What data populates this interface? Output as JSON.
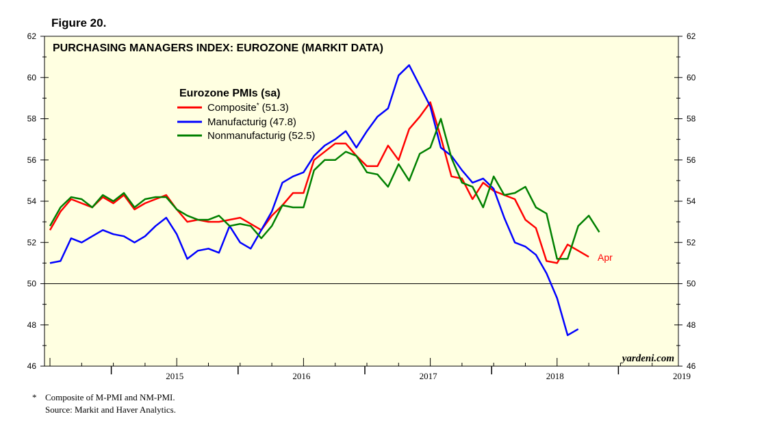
{
  "figure_label": "Figure 20.",
  "footnotes": {
    "star": "*",
    "composite_note": "Composite of M-PMI and NM-PMI.",
    "source": "Source: Markit and Haver Analytics."
  },
  "chart_data": {
    "type": "line",
    "title": "PURCHASING MANAGERS INDEX: EUROZONE (MARKIT DATA)",
    "legend_title": "Eurozone PMIs (sa)",
    "legend_position": "top-left",
    "watermark": "yardeni.com",
    "end_annotation": "Apr",
    "ylim": [
      46,
      62
    ],
    "yticks": [
      46,
      48,
      50,
      52,
      54,
      56,
      58,
      60,
      62
    ],
    "reference_line": 50,
    "start": "2014-07",
    "xlim_months": [
      0,
      60
    ],
    "year_labels": [
      "2015",
      "2016",
      "2017",
      "2018",
      "2019"
    ],
    "colors": {
      "composite": "#ff0000",
      "manufacturing": "#0000ff",
      "nonmanufacturing": "#008000",
      "background": "#ffffe1"
    },
    "series": [
      {
        "key": "composite",
        "name": "Composite",
        "name_suffix": "*",
        "legend_value": "(51.3)",
        "color": "#ff0000",
        "values": [
          52.6,
          53.5,
          54.1,
          53.9,
          53.7,
          54.2,
          53.9,
          54.3,
          53.6,
          53.9,
          54.1,
          54.3,
          53.6,
          53.0,
          53.1,
          53.0,
          53.0,
          53.1,
          53.2,
          52.9,
          52.6,
          53.3,
          53.8,
          54.4,
          54.4,
          56.0,
          56.4,
          56.8,
          56.8,
          56.2,
          55.7,
          55.7,
          56.7,
          56.0,
          57.5,
          58.1,
          58.8,
          57.1,
          55.2,
          55.1,
          54.1,
          54.9,
          54.5,
          54.3,
          54.1,
          53.1,
          52.7,
          51.1,
          51.0,
          51.9,
          51.6,
          51.3
        ],
        "start_index": 0
      },
      {
        "key": "manufacturing",
        "name": "Manufacturig",
        "name_suffix": "",
        "legend_value": "(47.8)",
        "color": "#0000ff",
        "values": [
          51.0,
          51.1,
          52.2,
          52.0,
          52.3,
          52.6,
          52.4,
          52.3,
          52.0,
          52.3,
          52.8,
          53.2,
          52.4,
          51.2,
          51.6,
          51.7,
          51.5,
          52.8,
          52.0,
          51.7,
          52.6,
          53.5,
          54.9,
          55.2,
          55.4,
          56.2,
          56.7,
          57.0,
          57.4,
          56.6,
          57.4,
          58.1,
          58.5,
          60.1,
          60.6,
          59.6,
          58.6,
          56.6,
          56.2,
          55.5,
          54.9,
          55.1,
          54.6,
          53.2,
          52.0,
          51.8,
          51.4,
          50.5,
          49.3,
          47.5,
          47.8
        ],
        "start_index": 0
      },
      {
        "key": "nonmanufacturing",
        "name": "Nonmanufacturig",
        "name_suffix": "",
        "legend_value": "(52.5)",
        "color": "#008000",
        "values": [
          52.8,
          53.7,
          54.2,
          54.1,
          53.7,
          54.3,
          54.0,
          54.4,
          53.7,
          54.1,
          54.2,
          54.2,
          53.6,
          53.3,
          53.1,
          53.1,
          53.3,
          52.8,
          52.9,
          52.8,
          52.2,
          52.8,
          53.8,
          53.7,
          53.7,
          55.5,
          56.0,
          56.0,
          56.4,
          56.2,
          55.4,
          55.3,
          54.7,
          55.8,
          55.0,
          56.3,
          56.6,
          58.0,
          56.1,
          54.9,
          54.7,
          53.7,
          55.2,
          54.3,
          54.4,
          54.7,
          53.7,
          53.4,
          51.2,
          51.2,
          52.8,
          53.3,
          52.5
        ],
        "start_index": 0
      }
    ]
  }
}
